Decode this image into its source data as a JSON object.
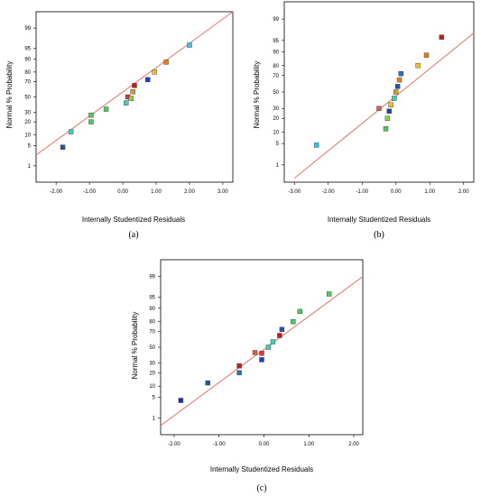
{
  "colors": {
    "fit_line": "#e8706a",
    "axes": "#000000",
    "point_border": "#333333"
  },
  "chart_data": [
    {
      "type": "scatter",
      "panel_label": "(a)",
      "xlabel": "Internally Studentized Residuals",
      "ylabel": "Normal % Probability",
      "xlim": [
        -2.6,
        3.3
      ],
      "x_ticks": [
        "-2.00",
        "-1.00",
        "0.00",
        "1.00",
        "2.00",
        "3.00"
      ],
      "x_tick_values": [
        -2,
        -1,
        0,
        1,
        2,
        3
      ],
      "y_ticks": [
        "1",
        "5",
        "10",
        "20",
        "30",
        "50",
        "70",
        "80",
        "90",
        "95",
        "99"
      ],
      "y_tick_values": [
        1,
        5,
        10,
        20,
        30,
        50,
        70,
        80,
        90,
        95,
        99
      ],
      "fit_line": {
        "x": [
          -2.6,
          3.3
        ],
        "y": [
          2.5,
          99.8
        ]
      },
      "points": [
        {
          "x": -1.8,
          "y": 4.5,
          "color": "#2a50a0"
        },
        {
          "x": -1.55,
          "y": 12,
          "color": "#40d0b0"
        },
        {
          "x": -0.95,
          "y": 20,
          "color": "#50c860"
        },
        {
          "x": -0.95,
          "y": 27,
          "color": "#50c860"
        },
        {
          "x": -0.5,
          "y": 34,
          "color": "#50c860"
        },
        {
          "x": 0.1,
          "y": 42,
          "color": "#40d0b0"
        },
        {
          "x": 0.15,
          "y": 50,
          "color": "#d04040"
        },
        {
          "x": 0.25,
          "y": 48,
          "color": "#90d040"
        },
        {
          "x": 0.3,
          "y": 57,
          "color": "#d0a030"
        },
        {
          "x": 0.35,
          "y": 65,
          "color": "#c02020"
        },
        {
          "x": 0.75,
          "y": 72,
          "color": "#2040c0"
        },
        {
          "x": 0.95,
          "y": 80,
          "color": "#f0c020"
        },
        {
          "x": 1.3,
          "y": 88,
          "color": "#e08020"
        },
        {
          "x": 2.0,
          "y": 96,
          "color": "#40c0e0"
        }
      ]
    },
    {
      "type": "scatter",
      "panel_label": "(b)",
      "xlabel": "Internally Studentized Residuals",
      "ylabel": "Normal % Probability",
      "xlim": [
        -3.3,
        2.3
      ],
      "x_ticks": [
        "-3.00",
        "-2.00",
        "-1.00",
        "0.00",
        "1.00",
        "2.00"
      ],
      "x_tick_values": [
        -3,
        -2,
        -1,
        0,
        1,
        2
      ],
      "y_ticks": [
        "1",
        "5",
        "10",
        "20",
        "30",
        "50",
        "70",
        "80",
        "90",
        "95",
        "99"
      ],
      "y_tick_values": [
        1,
        5,
        10,
        20,
        30,
        50,
        70,
        80,
        90,
        95,
        99
      ],
      "fit_line": {
        "x": [
          -3.0,
          2.3
        ],
        "y": [
          0.3,
          97
        ]
      },
      "points": [
        {
          "x": -2.35,
          "y": 4.5,
          "color": "#40c0e0"
        },
        {
          "x": -0.5,
          "y": 30,
          "color": "#d06050"
        },
        {
          "x": -0.3,
          "y": 12,
          "color": "#50c860"
        },
        {
          "x": -0.25,
          "y": 20,
          "color": "#90d040"
        },
        {
          "x": -0.2,
          "y": 27,
          "color": "#2040c0"
        },
        {
          "x": -0.15,
          "y": 34,
          "color": "#f0c020"
        },
        {
          "x": -0.05,
          "y": 42,
          "color": "#40d0b0"
        },
        {
          "x": 0.0,
          "y": 50,
          "color": "#d0a030"
        },
        {
          "x": 0.05,
          "y": 57,
          "color": "#2a50a0"
        },
        {
          "x": 0.1,
          "y": 65,
          "color": "#e08020"
        },
        {
          "x": 0.15,
          "y": 72,
          "color": "#2a70c0"
        },
        {
          "x": 0.65,
          "y": 80,
          "color": "#f0c020"
        },
        {
          "x": 0.9,
          "y": 88,
          "color": "#e08020"
        },
        {
          "x": 1.35,
          "y": 96,
          "color": "#c02020"
        }
      ]
    },
    {
      "type": "scatter",
      "panel_label": "(c)",
      "xlabel": "Internally Studentized Residuals",
      "ylabel": "Normal % Probability",
      "xlim": [
        -2.3,
        2.2
      ],
      "x_ticks": [
        "-2.00",
        "-1.00",
        "0.00",
        "1.00",
        "2.00"
      ],
      "x_tick_values": [
        -2,
        -1,
        0,
        1,
        2
      ],
      "y_ticks": [
        "1",
        "5",
        "10",
        "20",
        "30",
        "50",
        "70",
        "80",
        "90",
        "95",
        "99"
      ],
      "y_tick_values": [
        1,
        5,
        10,
        20,
        30,
        50,
        70,
        80,
        90,
        95,
        99
      ],
      "fit_line": {
        "x": [
          -2.3,
          2.2
        ],
        "y": [
          0.5,
          99
        ]
      },
      "points": [
        {
          "x": -1.85,
          "y": 4,
          "color": "#2030a0"
        },
        {
          "x": -1.25,
          "y": 12,
          "color": "#2a50a0"
        },
        {
          "x": -0.55,
          "y": 20,
          "color": "#2a70c0"
        },
        {
          "x": -0.55,
          "y": 27,
          "color": "#c02020"
        },
        {
          "x": -0.05,
          "y": 34,
          "color": "#2040c0"
        },
        {
          "x": -0.05,
          "y": 42,
          "color": "#d04040"
        },
        {
          "x": -0.2,
          "y": 43,
          "color": "#d06050"
        },
        {
          "x": 0.1,
          "y": 50,
          "color": "#40d0b0"
        },
        {
          "x": 0.2,
          "y": 57,
          "color": "#40d0b0"
        },
        {
          "x": 0.35,
          "y": 65,
          "color": "#c02020"
        },
        {
          "x": 0.4,
          "y": 72,
          "color": "#2a50a0"
        },
        {
          "x": 0.65,
          "y": 80,
          "color": "#50c860"
        },
        {
          "x": 0.8,
          "y": 88,
          "color": "#50c860"
        },
        {
          "x": 1.45,
          "y": 96,
          "color": "#50c860"
        }
      ]
    }
  ]
}
